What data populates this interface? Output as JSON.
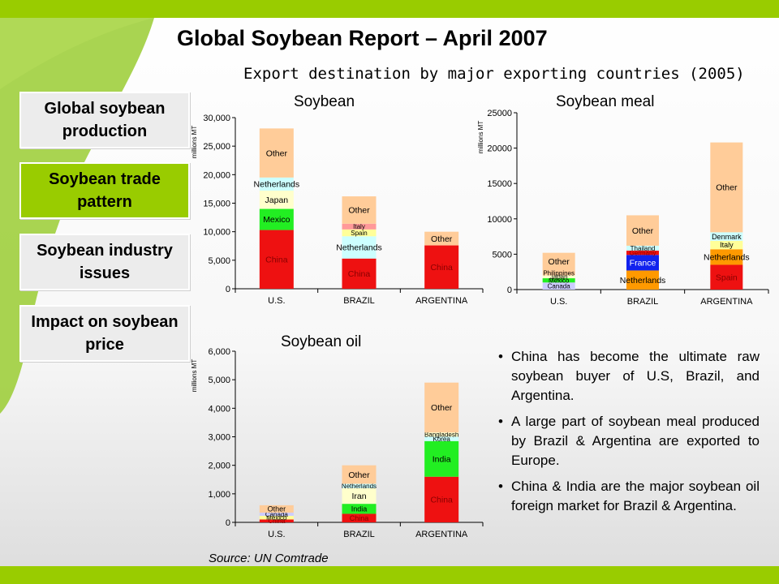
{
  "header": {
    "title": "Global Soybean Report – April 2007",
    "subtitle": "Export destination by major exporting countries (2005)"
  },
  "nav": {
    "items": [
      {
        "label": "Global soybean production",
        "active": false
      },
      {
        "label": "Soybean trade pattern",
        "active": true
      },
      {
        "label": "Soybean industry issues",
        "active": false
      },
      {
        "label": "Impact on soybean price",
        "active": false
      }
    ]
  },
  "theme": {
    "accent": "#99cc00",
    "leaf": "#9acd32"
  },
  "colors": {
    "China": "#ee1111",
    "Mexico": "#22ee22",
    "Japan": "#ffffcc",
    "Netherlands": "#ccffff",
    "Other": "#ffcc99",
    "Spain": "#ffff99",
    "Italy": "#ff9999",
    "Canada": "#ccccff",
    "Philippines": "#ffcc99",
    "Thailand": "#ccffff",
    "Germany": "#ee1111",
    "France": "#1122ee",
    "Denmark": "#ccffff",
    "Iran": "#ffffcc",
    "India": "#22ee22",
    "Korea": "#ccffff",
    "Bangladesh": "#ffffcc",
    "Mexico oil": "#ffff99",
    "Netherlands meal": "#ff9900",
    "Spain meal": "#ee1111"
  },
  "chart_data": [
    {
      "type": "bar",
      "stacked": true,
      "title": "Soybean",
      "ylabel": "millions MT",
      "ylim": [
        0,
        30000
      ],
      "yticks": [
        0,
        5000,
        10000,
        15000,
        20000,
        25000,
        30000
      ],
      "ytick_labels": [
        "0",
        "5,000",
        "10,000",
        "15,000",
        "20,000",
        "25,000",
        "30,000"
      ],
      "categories": [
        "U.S.",
        "BRAZIL",
        "ARGENTINA"
      ],
      "bars": [
        {
          "category": "U.S.",
          "segments": [
            {
              "name": "China",
              "value": 10300,
              "color": "#ee1111"
            },
            {
              "name": "Mexico",
              "value": 3700,
              "color": "#22ee22"
            },
            {
              "name": "Japan",
              "value": 3200,
              "color": "#ffffcc"
            },
            {
              "name": "Netherlands",
              "value": 2300,
              "color": "#ccffff"
            },
            {
              "name": "Other",
              "value": 8600,
              "color": "#ffcc99"
            }
          ]
        },
        {
          "category": "BRAZIL",
          "segments": [
            {
              "name": "China",
              "value": 5300,
              "color": "#ee1111"
            },
            {
              "name": "Netherlands",
              "value": 3900,
              "color": "#ccffff"
            },
            {
              "name": "Spain",
              "value": 1200,
              "color": "#ffff99"
            },
            {
              "name": "Italy",
              "value": 1000,
              "color": "#ff9999"
            },
            {
              "name": "Other",
              "value": 4800,
              "color": "#ffcc99"
            }
          ]
        },
        {
          "category": "ARGENTINA",
          "segments": [
            {
              "name": "China",
              "value": 7600,
              "color": "#ee1111"
            },
            {
              "name": "Other",
              "value": 2400,
              "color": "#ffcc99"
            }
          ]
        }
      ]
    },
    {
      "type": "bar",
      "stacked": true,
      "title": "Soybean meal",
      "ylabel": "millions MT",
      "ylim": [
        0,
        25000
      ],
      "yticks": [
        0,
        5000,
        10000,
        15000,
        20000,
        25000
      ],
      "ytick_labels": [
        "0",
        "5000",
        "10000",
        "15000",
        "20000",
        "25000"
      ],
      "categories": [
        "U.S.",
        "BRAZIL",
        "ARGENTINA"
      ],
      "bars": [
        {
          "category": "U.S.",
          "segments": [
            {
              "name": "Canada",
              "value": 1000,
              "color": "#ccccff"
            },
            {
              "name": "Mexico",
              "value": 600,
              "color": "#22ee22"
            },
            {
              "name": "Japan",
              "value": 400,
              "color": "#ffffcc"
            },
            {
              "name": "Philippines",
              "value": 700,
              "color": "#ffcc99"
            },
            {
              "name": "Other",
              "value": 2500,
              "color": "#ffcc99"
            }
          ]
        },
        {
          "category": "BRAZIL",
          "segments": [
            {
              "name": "Netherlands",
              "value": 2700,
              "color": "#ff9900"
            },
            {
              "name": "France",
              "value": 2200,
              "color": "#1122ee"
            },
            {
              "name": "Germany",
              "value": 600,
              "color": "#ee1111"
            },
            {
              "name": "Thailand",
              "value": 700,
              "color": "#ccffff"
            },
            {
              "name": "Other",
              "value": 4300,
              "color": "#ffcc99"
            }
          ]
        },
        {
          "category": "ARGENTINA",
          "segments": [
            {
              "name": "Spain",
              "value": 3500,
              "color": "#ee1111"
            },
            {
              "name": "Netherlands",
              "value": 2200,
              "color": "#ff9900"
            },
            {
              "name": "Italy",
              "value": 1200,
              "color": "#ffff99"
            },
            {
              "name": "Denmark",
              "value": 1200,
              "color": "#ccffff"
            },
            {
              "name": "Other",
              "value": 12700,
              "color": "#ffcc99"
            }
          ]
        }
      ]
    },
    {
      "type": "bar",
      "stacked": true,
      "title": "Soybean oil",
      "ylabel": "millions MT",
      "ylim": [
        0,
        6000
      ],
      "yticks": [
        0,
        1000,
        2000,
        3000,
        4000,
        5000,
        6000
      ],
      "ytick_labels": [
        "0",
        "1,000",
        "2,000",
        "3,000",
        "4,000",
        "5,000",
        "6,000"
      ],
      "categories": [
        "U.S.",
        "BRAZIL",
        "ARGENTINA"
      ],
      "bars": [
        {
          "category": "U.S.",
          "segments": [
            {
              "name": "China",
              "value": 100,
              "color": "#ee1111"
            },
            {
              "name": "Mexico",
              "value": 130,
              "color": "#ffff99"
            },
            {
              "name": "Canada",
              "value": 110,
              "color": "#ccccff"
            },
            {
              "name": "Other",
              "value": 260,
              "color": "#ffcc99"
            }
          ]
        },
        {
          "category": "BRAZIL",
          "segments": [
            {
              "name": "China",
              "value": 300,
              "color": "#ee1111"
            },
            {
              "name": "India",
              "value": 350,
              "color": "#22ee22"
            },
            {
              "name": "Iran",
              "value": 550,
              "color": "#ffffcc"
            },
            {
              "name": "Netherlands",
              "value": 150,
              "color": "#ccffff"
            },
            {
              "name": "Other",
              "value": 650,
              "color": "#ffcc99"
            }
          ]
        },
        {
          "category": "ARGENTINA",
          "segments": [
            {
              "name": "China",
              "value": 1600,
              "color": "#ee1111"
            },
            {
              "name": "India",
              "value": 1250,
              "color": "#22ee22"
            },
            {
              "name": "Korea",
              "value": 150,
              "color": "#ccffff"
            },
            {
              "name": "Bangladesh",
              "value": 150,
              "color": "#ffffcc"
            },
            {
              "name": "Other",
              "value": 1750,
              "color": "#ffcc99"
            }
          ]
        }
      ]
    }
  ],
  "bullets": [
    "China has become the ultimate raw soybean buyer of U.S, Brazil, and Argentina.",
    "A large part of soybean meal produced by Brazil & Argentina are exported to Europe.",
    "China & India are the major soybean oil foreign market for Brazil & Argentina."
  ],
  "source": "Source: UN Comtrade",
  "bullet_glyph": "•"
}
